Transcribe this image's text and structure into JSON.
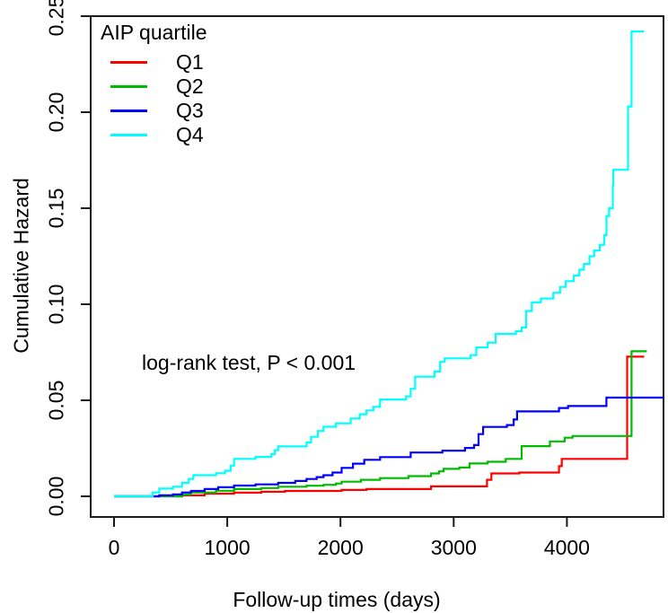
{
  "figure": {
    "background_color": "#ffffff",
    "text_color": "#000000",
    "axis_color": "#1a1a1a"
  },
  "chart_data": {
    "type": "line",
    "subtype": "step-after-cumulative-hazard",
    "title": "",
    "xlabel": "Follow-up times (days)",
    "ylabel": "Cumulative Hazard",
    "annotation": "log-rank test, P < 0.001",
    "legend_title": "AIP quartile",
    "legend_position": "top-left",
    "grid": false,
    "xlim": [
      -200,
      4860
    ],
    "ylim": [
      -0.011,
      0.25
    ],
    "x_ticks": [
      0,
      1000,
      2000,
      3000,
      4000
    ],
    "x_tick_labels": [
      "0",
      "1000",
      "2000",
      "3000",
      "4000"
    ],
    "y_ticks": [
      0,
      0.05,
      0.1,
      0.15,
      0.2,
      0.25
    ],
    "y_tick_labels": [
      "0.00",
      "0.05",
      "0.10",
      "0.15",
      "0.20",
      "0.25"
    ],
    "series": [
      {
        "name": "Q1",
        "color": "#ff0000",
        "points": [
          [
            0,
            0
          ],
          [
            600,
            0.0005
          ],
          [
            800,
            0.0014
          ],
          [
            1060,
            0.0019
          ],
          [
            1300,
            0.0024
          ],
          [
            1510,
            0.0028
          ],
          [
            2010,
            0.0033
          ],
          [
            2230,
            0.0038
          ],
          [
            2800,
            0.0052
          ],
          [
            3294,
            0.0086
          ],
          [
            3333,
            0.0119
          ],
          [
            3580,
            0.0124
          ],
          [
            3930,
            0.0157
          ],
          [
            3955,
            0.0195
          ],
          [
            4532,
            0.0727
          ],
          [
            4683,
            0.0727
          ]
        ]
      },
      {
        "name": "Q2",
        "color": "#00bb00",
        "points": [
          [
            0,
            0
          ],
          [
            600,
            0.001
          ],
          [
            680,
            0.002
          ],
          [
            900,
            0.0029
          ],
          [
            1060,
            0.0038
          ],
          [
            1300,
            0.0043
          ],
          [
            1450,
            0.005
          ],
          [
            1700,
            0.0055
          ],
          [
            1850,
            0.006
          ],
          [
            1960,
            0.0067
          ],
          [
            2010,
            0.0076
          ],
          [
            2180,
            0.0086
          ],
          [
            2350,
            0.0095
          ],
          [
            2600,
            0.0105
          ],
          [
            2800,
            0.0119
          ],
          [
            2870,
            0.013
          ],
          [
            2910,
            0.0143
          ],
          [
            3050,
            0.015
          ],
          [
            3140,
            0.0171
          ],
          [
            3300,
            0.018
          ],
          [
            3460,
            0.0195
          ],
          [
            3600,
            0.0261
          ],
          [
            3850,
            0.0286
          ],
          [
            3980,
            0.0305
          ],
          [
            4050,
            0.0314
          ],
          [
            4571,
            0.0755
          ],
          [
            4706,
            0.0755
          ]
        ]
      },
      {
        "name": "Q3",
        "color": "#0000ff",
        "points": [
          [
            0,
            0
          ],
          [
            400,
            0.0005
          ],
          [
            520,
            0.001
          ],
          [
            600,
            0.002
          ],
          [
            680,
            0.0028
          ],
          [
            800,
            0.0038
          ],
          [
            920,
            0.0047
          ],
          [
            1060,
            0.0056
          ],
          [
            1250,
            0.0062
          ],
          [
            1450,
            0.007
          ],
          [
            1600,
            0.008
          ],
          [
            1700,
            0.009
          ],
          [
            1790,
            0.01
          ],
          [
            1850,
            0.011
          ],
          [
            1930,
            0.0124
          ],
          [
            2010,
            0.0148
          ],
          [
            2110,
            0.017
          ],
          [
            2210,
            0.019
          ],
          [
            2350,
            0.0204
          ],
          [
            2620,
            0.0228
          ],
          [
            2900,
            0.0238
          ],
          [
            3100,
            0.0252
          ],
          [
            3180,
            0.0267
          ],
          [
            3220,
            0.0324
          ],
          [
            3260,
            0.0361
          ],
          [
            3470,
            0.0371
          ],
          [
            3530,
            0.04
          ],
          [
            3560,
            0.0442
          ],
          [
            3930,
            0.046
          ],
          [
            4010,
            0.047
          ],
          [
            4349,
            0.0514
          ],
          [
            4857,
            0.0514
          ]
        ]
      },
      {
        "name": "Q4",
        "color": "#00ffff",
        "points": [
          [
            0,
            0
          ],
          [
            340,
            0.002
          ],
          [
            400,
            0.004
          ],
          [
            520,
            0.005
          ],
          [
            600,
            0.007
          ],
          [
            660,
            0.009
          ],
          [
            700,
            0.011
          ],
          [
            900,
            0.012
          ],
          [
            980,
            0.0133
          ],
          [
            1030,
            0.016
          ],
          [
            1060,
            0.0195
          ],
          [
            1250,
            0.0205
          ],
          [
            1390,
            0.022
          ],
          [
            1420,
            0.024
          ],
          [
            1450,
            0.026
          ],
          [
            1700,
            0.028
          ],
          [
            1740,
            0.031
          ],
          [
            1800,
            0.034
          ],
          [
            1850,
            0.0362
          ],
          [
            1960,
            0.038
          ],
          [
            2090,
            0.0405
          ],
          [
            2170,
            0.0427
          ],
          [
            2230,
            0.0447
          ],
          [
            2290,
            0.0466
          ],
          [
            2350,
            0.0504
          ],
          [
            2580,
            0.052
          ],
          [
            2620,
            0.056
          ],
          [
            2660,
            0.0623
          ],
          [
            2830,
            0.065
          ],
          [
            2880,
            0.07
          ],
          [
            2920,
            0.0718
          ],
          [
            3150,
            0.0735
          ],
          [
            3200,
            0.0775
          ],
          [
            3300,
            0.08
          ],
          [
            3370,
            0.0846
          ],
          [
            3550,
            0.086
          ],
          [
            3600,
            0.0879
          ],
          [
            3640,
            0.0965
          ],
          [
            3690,
            0.101
          ],
          [
            3770,
            0.103
          ],
          [
            3880,
            0.106
          ],
          [
            3940,
            0.109
          ],
          [
            3990,
            0.112
          ],
          [
            4060,
            0.115
          ],
          [
            4110,
            0.118
          ],
          [
            4150,
            0.121
          ],
          [
            4200,
            0.125
          ],
          [
            4240,
            0.128
          ],
          [
            4290,
            0.131
          ],
          [
            4330,
            0.136
          ],
          [
            4350,
            0.146
          ],
          [
            4373,
            0.15
          ],
          [
            4405,
            0.162
          ],
          [
            4410,
            0.17
          ],
          [
            4540,
            0.203
          ],
          [
            4571,
            0.242
          ],
          [
            4683,
            0.242
          ]
        ]
      }
    ]
  }
}
